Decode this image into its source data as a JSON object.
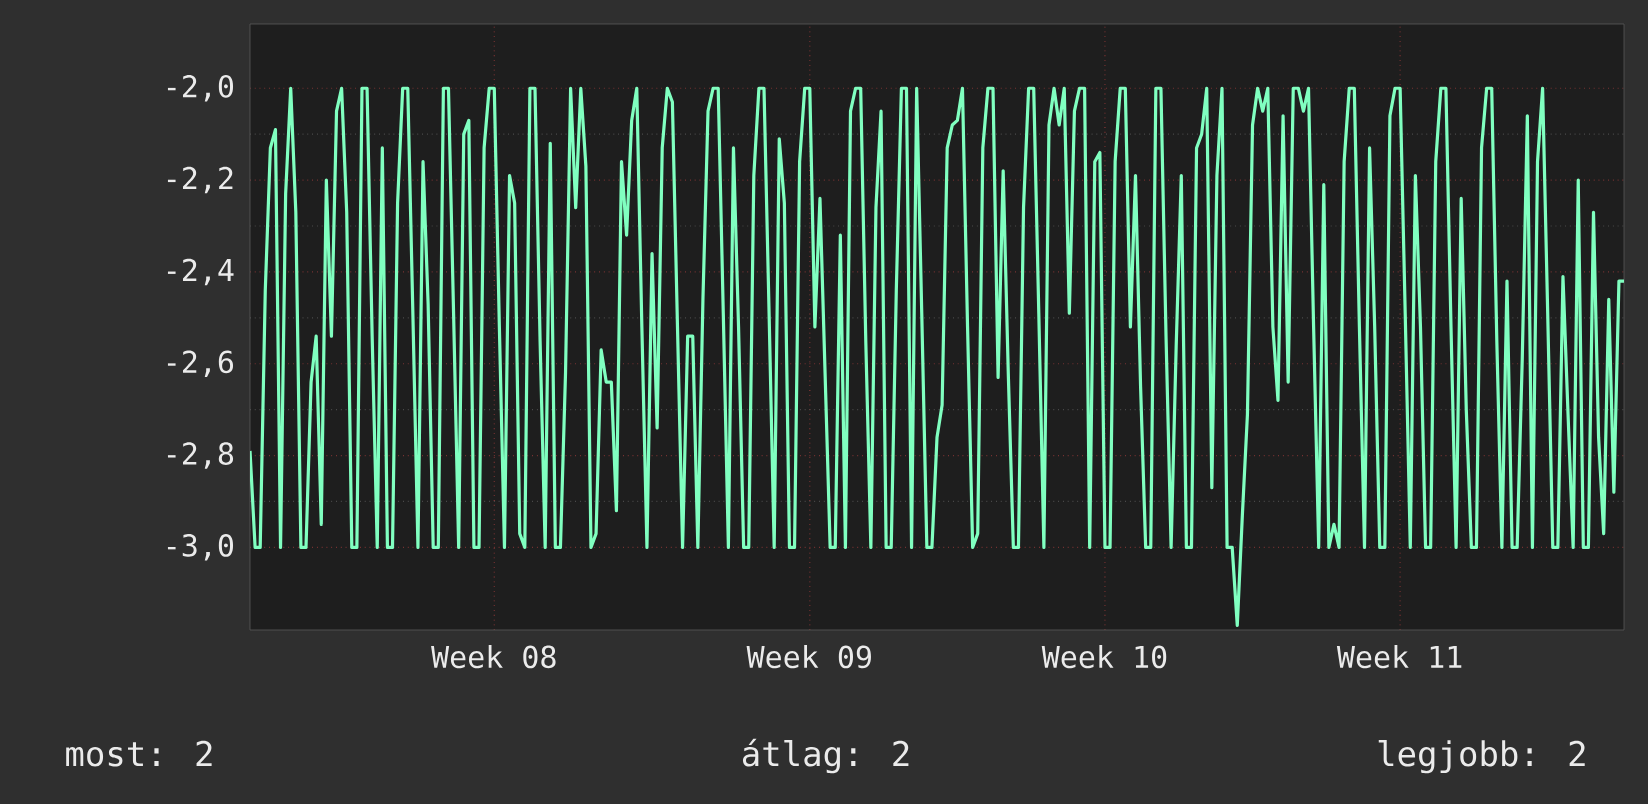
{
  "chart_data": {
    "type": "line",
    "categories": [
      null,
      null,
      null,
      null,
      null,
      null,
      null,
      null,
      null,
      null,
      null,
      null,
      null,
      null,
      null,
      null,
      null,
      null,
      null,
      null,
      null,
      null,
      null,
      null,
      null,
      null,
      null,
      null,
      null,
      null,
      null,
      null,
      null,
      null,
      null,
      null,
      null,
      null,
      null,
      null,
      null,
      null,
      null,
      null,
      null,
      null,
      null,
      null,
      "Week 08",
      null,
      null,
      null,
      null,
      null,
      null,
      null,
      null,
      null,
      null,
      null,
      null,
      null,
      null,
      null,
      null,
      null,
      null,
      null,
      null,
      null,
      null,
      null,
      null,
      null,
      null,
      null,
      null,
      null,
      null,
      null,
      null,
      null,
      null,
      null,
      null,
      null,
      null,
      null,
      null,
      null,
      null,
      null,
      null,
      null,
      null,
      null,
      null,
      null,
      null,
      null,
      null,
      null,
      null,
      null,
      null,
      null,
      null,
      null,
      null,
      null,
      "Week 09",
      null,
      null,
      null,
      null,
      null,
      null,
      null,
      null,
      null,
      null,
      null,
      null,
      null,
      null,
      null,
      null,
      null,
      null,
      null,
      null,
      null,
      null,
      null,
      null,
      null,
      null,
      null,
      null,
      null,
      null,
      null,
      null,
      null,
      null,
      null,
      null,
      null,
      null,
      null,
      null,
      null,
      null,
      null,
      null,
      null,
      null,
      null,
      null,
      null,
      null,
      null,
      null,
      null,
      null,
      null,
      null,
      null,
      "Week 10",
      null,
      null,
      null,
      null,
      null,
      null,
      null,
      null,
      null,
      null,
      null,
      null,
      null,
      null,
      null,
      null,
      null,
      null,
      null,
      null,
      null,
      null,
      null,
      null,
      null,
      null,
      null,
      null,
      null,
      null,
      null,
      null,
      null,
      null,
      null,
      null,
      null,
      null,
      null,
      null,
      null,
      null,
      null,
      null,
      null,
      null,
      null,
      null,
      null,
      null,
      null,
      null,
      null,
      null,
      null,
      null,
      null,
      "Week 11",
      null,
      null,
      null,
      null,
      null,
      null,
      null,
      null,
      null,
      null,
      null,
      null,
      null,
      null,
      null,
      null,
      null,
      null,
      null,
      null,
      null,
      null,
      null,
      null,
      null,
      null,
      null,
      null,
      null,
      null,
      null,
      null,
      null,
      null,
      null,
      null,
      null,
      null,
      null,
      null,
      null,
      null,
      null,
      null
    ],
    "series": [
      {
        "color": "#80ffc0",
        "values": [
          -2.79,
          -3.0,
          -3.0,
          -2.44,
          -2.13,
          -2.09,
          -3.0,
          -2.23,
          -2.0,
          -2.27,
          -3.0,
          -3.0,
          -2.64,
          -2.54,
          -2.95,
          -2.2,
          -2.54,
          -2.05,
          -2.0,
          -2.27,
          -3.0,
          -3.0,
          -2.0,
          -2.0,
          -2.54,
          -3.0,
          -2.13,
          -3.0,
          -3.0,
          -2.25,
          -2.0,
          -2.0,
          -2.49,
          -3.0,
          -2.16,
          -2.47,
          -3.0,
          -3.0,
          -2.0,
          -2.0,
          -2.49,
          -3.0,
          -2.1,
          -2.07,
          -3.0,
          -3.0,
          -2.13,
          -2.0,
          -2.0,
          -2.52,
          -3.0,
          -2.19,
          -2.25,
          -2.97,
          -3.0,
          -2.0,
          -2.0,
          -2.55,
          -3.0,
          -2.12,
          -3.0,
          -3.0,
          -2.62,
          -2.0,
          -2.26,
          -2.0,
          -2.17,
          -3.0,
          -2.97,
          -2.57,
          -2.64,
          -2.64,
          -2.92,
          -2.16,
          -2.32,
          -2.07,
          -2.0,
          -2.52,
          -3.0,
          -2.36,
          -2.74,
          -2.13,
          -2.0,
          -2.03,
          -2.52,
          -3.0,
          -2.54,
          -2.54,
          -3.0,
          -2.46,
          -2.05,
          -2.0,
          -2.0,
          -2.49,
          -3.0,
          -2.13,
          -2.52,
          -3.0,
          -3.0,
          -2.19,
          -2.0,
          -2.0,
          -2.49,
          -3.0,
          -2.11,
          -2.25,
          -3.0,
          -3.0,
          -2.16,
          -2.0,
          -2.0,
          -2.52,
          -2.24,
          -2.62,
          -3.0,
          -3.0,
          -2.32,
          -3.0,
          -2.05,
          -2.0,
          -2.0,
          -2.55,
          -3.0,
          -2.26,
          -2.05,
          -3.0,
          -3.0,
          -2.44,
          -2.0,
          -2.0,
          -3.0,
          -2.0,
          -2.49,
          -3.0,
          -3.0,
          -2.76,
          -2.69,
          -2.13,
          -2.08,
          -2.07,
          -2.0,
          -2.52,
          -3.0,
          -2.97,
          -2.13,
          -2.0,
          -2.0,
          -2.63,
          -2.18,
          -2.62,
          -3.0,
          -3.0,
          -2.26,
          -2.0,
          -2.0,
          -2.49,
          -3.0,
          -2.08,
          -2.0,
          -2.08,
          -2.0,
          -2.49,
          -2.05,
          -2.0,
          -2.0,
          -3.0,
          -2.16,
          -2.14,
          -3.0,
          -3.0,
          -2.16,
          -2.0,
          -2.0,
          -2.52,
          -2.19,
          -2.65,
          -3.0,
          -3.0,
          -2.0,
          -2.0,
          -2.54,
          -3.0,
          -2.56,
          -2.19,
          -3.0,
          -3.0,
          -2.13,
          -2.1,
          -2.0,
          -2.87,
          -2.19,
          -2.0,
          -3.0,
          -3.0,
          -3.17,
          -2.93,
          -2.71,
          -2.08,
          -2.0,
          -2.05,
          -2.0,
          -2.52,
          -2.68,
          -2.06,
          -2.64,
          -2.0,
          -2.0,
          -2.05,
          -2.0,
          -2.52,
          -3.0,
          -2.21,
          -3.0,
          -2.95,
          -3.0,
          -2.16,
          -2.0,
          -2.0,
          -2.52,
          -3.0,
          -2.13,
          -2.52,
          -3.0,
          -3.0,
          -2.06,
          -2.0,
          -2.0,
          -2.49,
          -3.0,
          -2.19,
          -2.52,
          -3.0,
          -3.0,
          -2.16,
          -2.0,
          -2.0,
          -2.52,
          -3.0,
          -2.24,
          -2.7,
          -3.0,
          -3.0,
          -2.13,
          -2.0,
          -2.0,
          -2.55,
          -3.0,
          -2.42,
          -3.0,
          -3.0,
          -2.59,
          -2.06,
          -3.0,
          -2.16,
          -2.0,
          -2.49,
          -3.0,
          -3.0,
          -2.41,
          -2.71,
          -3.0,
          -2.2,
          -3.0,
          -3.0,
          -2.27,
          -2.76,
          -2.97,
          -2.46,
          -2.88,
          -2.42,
          -2.42
        ]
      }
    ],
    "ylim": [
      -3.18,
      -1.86
    ],
    "yticks": [
      {
        "value": -3,
        "label": "-3,0"
      },
      {
        "value": -2.8,
        "label": "-2,8"
      },
      {
        "value": -2.6,
        "label": "-2,6"
      },
      {
        "value": -2.4,
        "label": "-2,4"
      },
      {
        "value": -2.2,
        "label": "-2,2"
      },
      {
        "value": -2,
        "label": "-2,0"
      }
    ],
    "grid": true,
    "line_style": "solid",
    "annotations": [
      "most: 2",
      "átlag: 2",
      "legjobb: 2"
    ]
  }
}
